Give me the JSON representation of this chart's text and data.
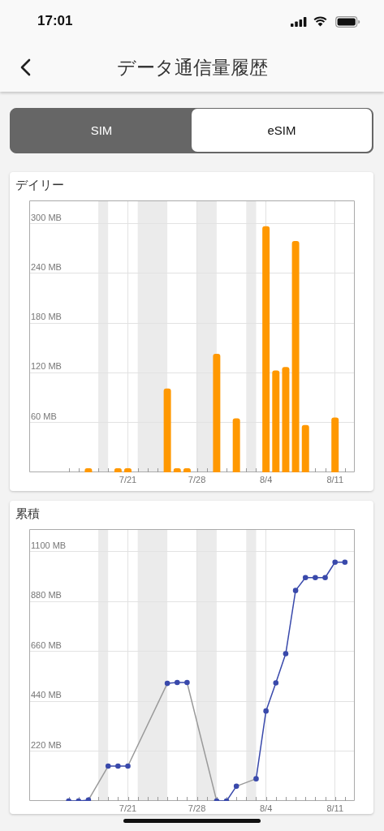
{
  "chart_data": [
    {
      "type": "bar",
      "title": "デイリー",
      "annotations": [
        "17:01",
        "データ通信量履歴",
        "SIM",
        "eSIM"
      ],
      "x": [
        "--07-17",
        "--07-20",
        "--07-21",
        "--07-25",
        "--07-26",
        "--07-27",
        "--07-30",
        "--08-01",
        "--08-04",
        "--08-05",
        "--08-06",
        "--08-07",
        "--08-08",
        "--08-11"
      ],
      "values": [
        5,
        5,
        5,
        101,
        5,
        5,
        143,
        65,
        297,
        123,
        127,
        279,
        57,
        66
      ],
      "color": "#ff9800",
      "xlim": [
        "--07-11",
        "--08-13"
      ],
      "xticks": [
        {
          "value": "--07-15",
          "label": null
        },
        {
          "value": "--07-16",
          "label": null
        },
        {
          "value": "--07-17",
          "label": null
        },
        {
          "value": "--07-18",
          "label": null
        },
        {
          "value": "--07-19",
          "label": null
        },
        {
          "value": "--07-20",
          "label": null
        },
        {
          "value": "--07-21",
          "label": "7/21"
        },
        {
          "value": "--07-22",
          "label": null
        },
        {
          "value": "--07-23",
          "label": null
        },
        {
          "value": "--07-24",
          "label": null
        },
        {
          "value": "--07-25",
          "label": null
        },
        {
          "value": "--07-26",
          "label": null
        },
        {
          "value": "--07-27",
          "label": null
        },
        {
          "value": "--07-28",
          "label": "7/28"
        },
        {
          "value": "--07-29",
          "label": null
        },
        {
          "value": "--07-30",
          "label": null
        },
        {
          "value": "--07-31",
          "label": null
        },
        {
          "value": "--08-01",
          "label": null
        },
        {
          "value": "--08-02",
          "label": null
        },
        {
          "value": "--08-03",
          "label": null
        },
        {
          "value": "--08-04",
          "label": "8/4"
        },
        {
          "value": "--08-05",
          "label": null
        },
        {
          "value": "--08-06",
          "label": null
        },
        {
          "value": "--08-07",
          "label": null
        },
        {
          "value": "--08-08",
          "label": null
        },
        {
          "value": "--08-09",
          "label": null
        },
        {
          "value": "--08-10",
          "label": null
        },
        {
          "value": "--08-11",
          "label": "8/11"
        },
        {
          "value": "--08-12",
          "label": null
        }
      ],
      "ylim": [
        0,
        328
      ],
      "yticks": [
        {
          "value": 60,
          "label": "60 MB"
        },
        {
          "value": 120,
          "label": "120 MB"
        },
        {
          "value": 180,
          "label": "180 MB"
        },
        {
          "value": 240,
          "label": "240 MB"
        },
        {
          "value": 300,
          "label": "300 MB"
        }
      ],
      "grid": true,
      "bands": [
        {
          "axis": "x",
          "from": "--07-18",
          "to": "--07-19"
        },
        {
          "axis": "x",
          "from": "--07-22",
          "to": "--07-25"
        },
        {
          "axis": "x",
          "from": "--07-28",
          "to": "--07-30"
        },
        {
          "axis": "x",
          "from": "--08-02",
          "to": "--08-03"
        }
      ]
    },
    {
      "type": "line",
      "title": "累積",
      "marker": "circle",
      "series": [
        {
          "color": "#3949ab",
          "x": [
            "--07-15",
            "--07-16",
            "--07-17",
            "--07-18",
            "--07-19",
            "--07-20",
            "--07-21",
            "--07-22",
            "--07-23",
            "--07-24",
            "--07-25",
            "--07-26",
            "--07-27",
            "--07-28",
            "--07-29",
            "--07-30",
            "--07-31",
            "--08-01",
            "--08-02",
            "--08-03",
            "--08-04",
            "--08-05",
            "--08-06",
            "--08-07",
            "--08-08",
            "--08-09",
            "--08-10",
            "--08-11",
            "--08-12"
          ],
          "values": [
            0,
            0,
            4,
            null,
            154,
            154,
            154,
            null,
            null,
            null,
            519,
            523,
            523,
            null,
            null,
            0,
            0,
            65,
            null,
            98,
            397,
            521,
            650,
            929,
            986,
            986,
            986,
            1054,
            1054
          ]
        },
        {
          "color": "#9a9a9a",
          "marker": "none",
          "x": [
            "--07-17",
            "--07-19",
            "--07-20",
            "--07-21",
            "--07-25",
            "--07-26",
            "--07-27",
            "--07-30",
            "--07-31",
            "--08-01",
            "--08-03"
          ],
          "values": [
            4,
            154,
            null,
            154,
            519,
            null,
            523,
            0,
            null,
            65,
            98
          ]
        }
      ],
      "xlim": [
        "--07-11",
        "--08-13"
      ],
      "xticks": [
        {
          "value": "--07-15",
          "label": null
        },
        {
          "value": "--07-16",
          "label": null
        },
        {
          "value": "--07-17",
          "label": null
        },
        {
          "value": "--07-18",
          "label": null
        },
        {
          "value": "--07-19",
          "label": null
        },
        {
          "value": "--07-20",
          "label": null
        },
        {
          "value": "--07-21",
          "label": "7/21"
        },
        {
          "value": "--07-22",
          "label": null
        },
        {
          "value": "--07-23",
          "label": null
        },
        {
          "value": "--07-24",
          "label": null
        },
        {
          "value": "--07-25",
          "label": null
        },
        {
          "value": "--07-26",
          "label": null
        },
        {
          "value": "--07-27",
          "label": null
        },
        {
          "value": "--07-28",
          "label": "7/28"
        },
        {
          "value": "--07-29",
          "label": null
        },
        {
          "value": "--07-30",
          "label": null
        },
        {
          "value": "--07-31",
          "label": null
        },
        {
          "value": "--08-01",
          "label": null
        },
        {
          "value": "--08-02",
          "label": null
        },
        {
          "value": "--08-03",
          "label": null
        },
        {
          "value": "--08-04",
          "label": "8/4"
        },
        {
          "value": "--08-05",
          "label": null
        },
        {
          "value": "--08-06",
          "label": null
        },
        {
          "value": "--08-07",
          "label": null
        },
        {
          "value": "--08-08",
          "label": null
        },
        {
          "value": "--08-09",
          "label": null
        },
        {
          "value": "--08-10",
          "label": null
        },
        {
          "value": "--08-11",
          "label": "8/11"
        },
        {
          "value": "--08-12",
          "label": null
        }
      ],
      "ylim": [
        0,
        1200
      ],
      "yticks": [
        {
          "value": 220,
          "label": "220 MB"
        },
        {
          "value": 440,
          "label": "440 MB"
        },
        {
          "value": 660,
          "label": "660 MB"
        },
        {
          "value": 880,
          "label": "880 MB"
        },
        {
          "value": 1100,
          "label": "1100 MB"
        }
      ],
      "grid": true,
      "bands": [
        {
          "axis": "x",
          "from": "--07-18",
          "to": "--07-19"
        },
        {
          "axis": "x",
          "from": "--07-22",
          "to": "--07-25"
        },
        {
          "axis": "x",
          "from": "--07-28",
          "to": "--07-30"
        },
        {
          "axis": "x",
          "from": "--08-02",
          "to": "--08-03"
        }
      ]
    }
  ]
}
